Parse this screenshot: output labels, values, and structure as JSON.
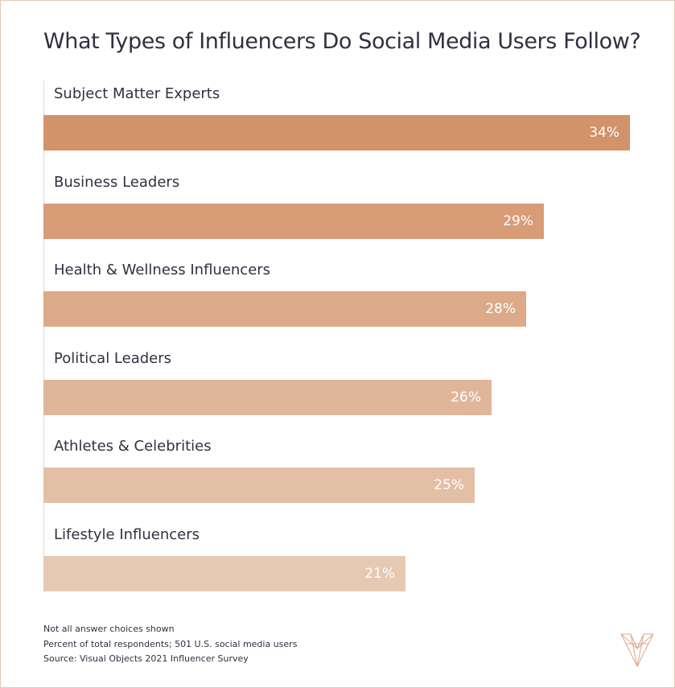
{
  "title": "What Types of Influencers Do Social Media Users Follow?",
  "chart_data": {
    "type": "bar",
    "orientation": "horizontal",
    "title": "What Types of Influencers Do Social Media Users Follow?",
    "categories": [
      "Subject Matter Experts",
      "Business Leaders",
      "Health & Wellness Influencers",
      "Political Leaders",
      "Athletes & Celebrities",
      "Lifestyle Influencers"
    ],
    "values": [
      34,
      29,
      28,
      26,
      25,
      21
    ],
    "value_labels": [
      "34%",
      "29%",
      "28%",
      "26%",
      "25%",
      "21%"
    ],
    "unit": "%",
    "xlim": [
      0,
      34
    ],
    "grid": false,
    "bar_colors": [
      "#d2926a",
      "#d89c77",
      "#dcaa89",
      "#e0b69a",
      "#e3bfa5",
      "#e6c9b3"
    ]
  },
  "footnotes": [
    "Not all answer choices shown",
    "Percent of total respondents; 501 U.S. social media users",
    "Source: Visual Objects 2021 Influencer Survey"
  ],
  "colors": {
    "frame": "#e7c9b7",
    "text": "#2f3140",
    "logo": "#d9a98a"
  },
  "logo_icon": "visual-objects-logo"
}
